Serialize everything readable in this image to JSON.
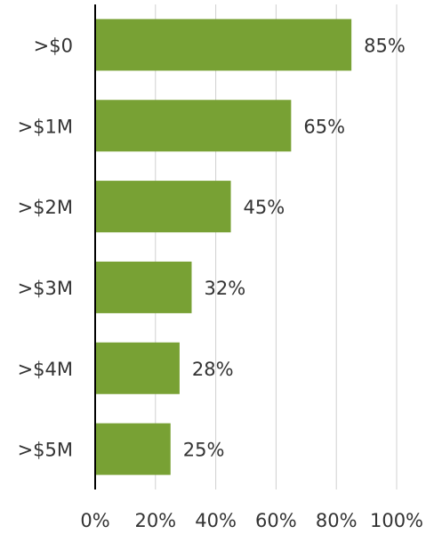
{
  "chart_data": {
    "type": "barh",
    "categories": [
      ">$0",
      ">$1M",
      ">$2M",
      ">$3M",
      ">$4M",
      ">$5M"
    ],
    "values": [
      85,
      65,
      45,
      32,
      28,
      25
    ],
    "value_labels": [
      "85%",
      "65%",
      "45%",
      "32%",
      "28%",
      "25%"
    ],
    "color": "#78a134",
    "xlim": [
      0,
      100
    ],
    "xticks": [
      {
        "value": 0,
        "label": "0%"
      },
      {
        "value": 20,
        "label": "20%"
      },
      {
        "value": 40,
        "label": "40%"
      },
      {
        "value": 60,
        "label": "60%"
      },
      {
        "value": 80,
        "label": "80%"
      },
      {
        "value": 100,
        "label": "100%"
      }
    ],
    "grid": true
  }
}
